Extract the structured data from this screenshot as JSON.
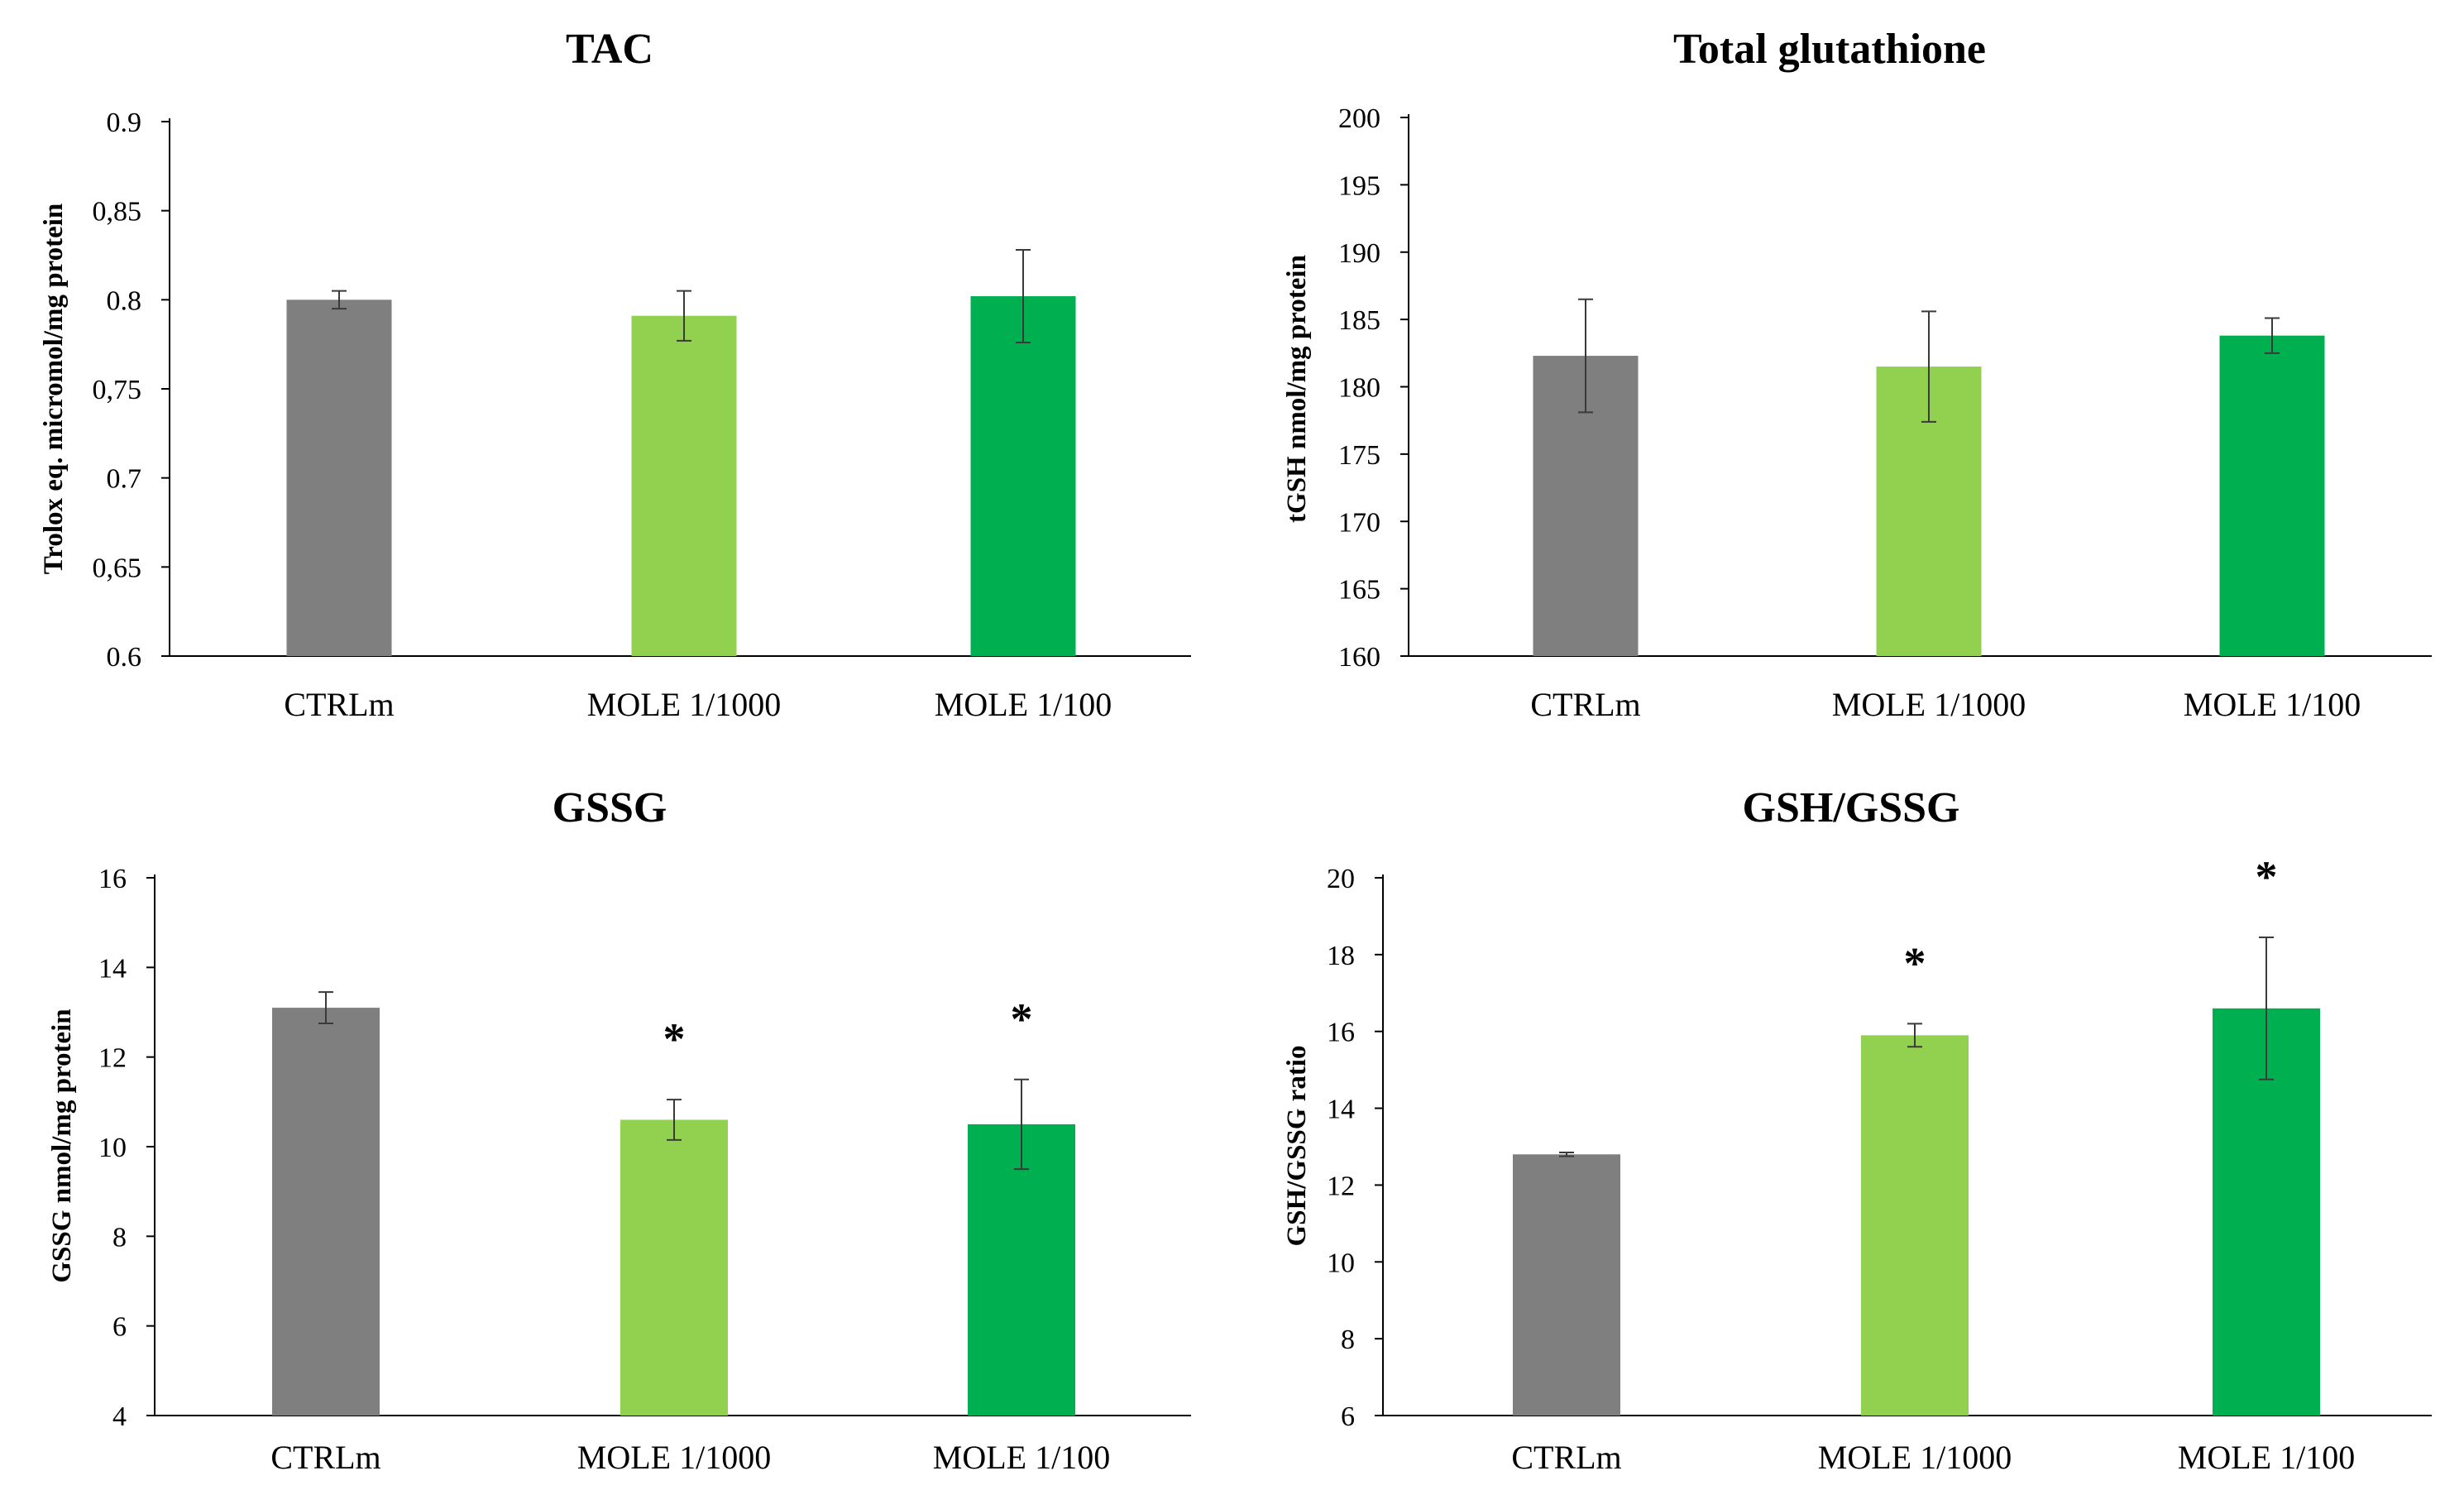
{
  "colors": {
    "ctrl": "#7f7f7f",
    "mole_low": "#92d050",
    "mole_high": "#00b050",
    "axis": "#000000",
    "error_bar": "#3a3a3a"
  },
  "chart_data": [
    {
      "type": "bar",
      "title": "TAC",
      "ylabel": "Trolox eq. micromol/mg protein",
      "xlabel": "",
      "categories": [
        "CTRLm",
        "MOLE 1/1000",
        "MOLE 1/100"
      ],
      "values": [
        0.8,
        0.791,
        0.802
      ],
      "errors": [
        0.005,
        0.014,
        0.026
      ],
      "significance": [
        "",
        "",
        ""
      ],
      "ylim": [
        0.6,
        0.9
      ],
      "yticks": [
        0.6,
        0.65,
        0.7,
        0.75,
        0.8,
        0.85,
        0.9
      ],
      "ytick_labels": [
        "0.6",
        "0,65",
        "0.7",
        "0,75",
        "0.8",
        "0,85",
        "0.9"
      ],
      "grid": false
    },
    {
      "type": "bar",
      "title": "Total glutathione",
      "ylabel": "tGSH nmol/mg protein",
      "xlabel": "",
      "categories": [
        "CTRLm",
        "MOLE 1/1000",
        "MOLE 1/100"
      ],
      "values": [
        182.3,
        181.5,
        183.8
      ],
      "errors": [
        4.2,
        4.1,
        1.3
      ],
      "significance": [
        "",
        "",
        ""
      ],
      "ylim": [
        160,
        200
      ],
      "yticks": [
        160,
        165,
        170,
        175,
        180,
        185,
        190,
        195,
        200
      ],
      "ytick_labels": [
        "160",
        "165",
        "170",
        "175",
        "180",
        "185",
        "190",
        "195",
        "200"
      ],
      "grid": false
    },
    {
      "type": "bar",
      "title": "GSSG",
      "ylabel": "GSSG  nmol/mg protein",
      "xlabel": "",
      "categories": [
        "CTRLm",
        "MOLE 1/1000",
        "MOLE 1/100"
      ],
      "values": [
        13.1,
        10.6,
        10.5
      ],
      "errors": [
        0.35,
        0.45,
        1.0
      ],
      "significance": [
        "",
        "*",
        "*"
      ],
      "ylim": [
        4,
        16
      ],
      "yticks": [
        4,
        6,
        8,
        10,
        12,
        14,
        16
      ],
      "ytick_labels": [
        "4",
        "6",
        "8",
        "10",
        "12",
        "14",
        "16"
      ],
      "grid": false
    },
    {
      "type": "bar",
      "title": "GSH/GSSG",
      "ylabel": "GSH/GSSG  ratio",
      "xlabel": "",
      "categories": [
        "CTRLm",
        "MOLE 1/1000",
        "MOLE 1/100"
      ],
      "values": [
        12.8,
        15.9,
        16.6
      ],
      "errors": [
        0.05,
        0.3,
        1.85
      ],
      "significance": [
        "",
        "*",
        "*"
      ],
      "ylim": [
        6,
        20
      ],
      "yticks": [
        6,
        8,
        10,
        12,
        14,
        16,
        18,
        20
      ],
      "ytick_labels": [
        "6",
        "8",
        "10",
        "12",
        "14",
        "16",
        "18",
        "20"
      ],
      "grid": false
    }
  ]
}
